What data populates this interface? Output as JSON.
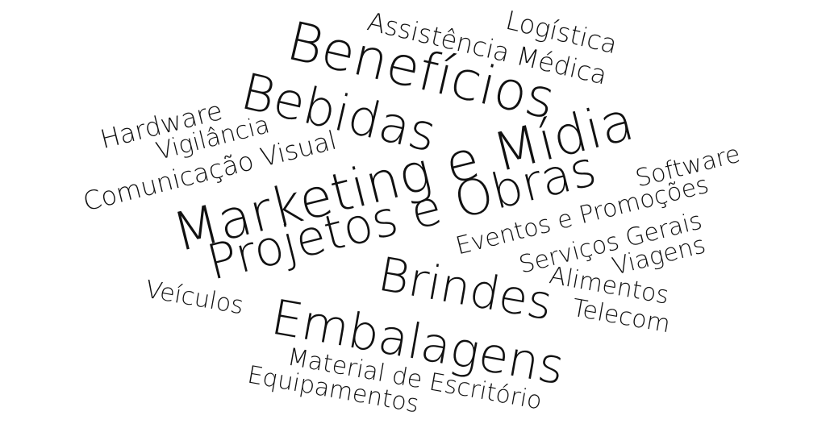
{
  "cloud": {
    "words": {
      "beneficios": "Benefícios",
      "bebidas": "Bebidas",
      "marketing_media": "Marketing e Mídia",
      "projetos_obras": "Projetos e Obras",
      "brindes": "Brindes",
      "embalagens": "Embalagens",
      "assistencia_medica": "Assistência Médica",
      "logistica": "Logística",
      "hardware": "Hardware",
      "vigilancia": "Vigilância",
      "comunicacao_visual": "Comunicação Visual",
      "software": "Software",
      "eventos_promocoes": "Eventos e Promoções",
      "servicos_gerais": "Serviços Gerais",
      "viagens": "Viagens",
      "alimentos": "Alimentos",
      "telecom": "Telecom",
      "veiculos": "Veículos",
      "material_escritorio": "Material de Escritório",
      "equipamentos": "Equipamentos"
    },
    "text_color": "#111111",
    "background_color": "#ffffff"
  }
}
